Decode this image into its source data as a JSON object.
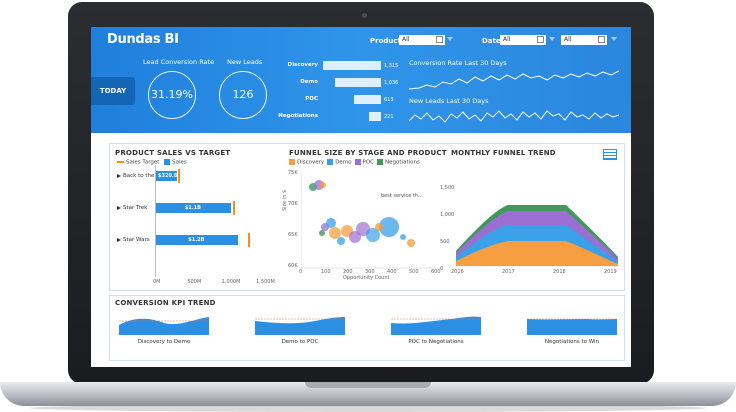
{
  "header": {
    "logo": "Dundas BI",
    "filters": {
      "product_label": "Product:",
      "product_value": "All",
      "date_label": "Date:",
      "date_from": "All",
      "date_to": "All"
    },
    "today_button": "TODAY",
    "kpis": [
      {
        "title": "Lead Conversion Rate",
        "value": "31.19%"
      },
      {
        "title": "New Leads",
        "value": "126"
      }
    ],
    "funnel": [
      {
        "stage": "Discovery",
        "value": "1,315",
        "fraction": 1.0
      },
      {
        "stage": "Demo",
        "value": "1,036",
        "fraction": 0.79
      },
      {
        "stage": "POC",
        "value": "613",
        "fraction": 0.47
      },
      {
        "stage": "Negotiations",
        "value": "221",
        "fraction": 0.17
      }
    ],
    "trends": [
      {
        "title": "Conversion Rate Last 30 Days"
      },
      {
        "title": "New Leads Last 30 Days"
      }
    ]
  },
  "product_sales": {
    "title": "PRODUCT SALES VS TARGET",
    "legend": {
      "target": "Sales Target",
      "sales": "Sales"
    },
    "rows": [
      {
        "label": "Back to the F...",
        "value_label": "$320.8M",
        "value": 320.8,
        "target": 330
      },
      {
        "label": "Star Trek",
        "value_label": "$1.1B",
        "value": 1100,
        "target": 1130
      },
      {
        "label": "Star Wars",
        "value_label": "$1.2B",
        "value": 1200,
        "target": 1350
      }
    ],
    "x_ticks": [
      "0M",
      "500M",
      "1,000M",
      "1,500M"
    ],
    "x_max": 1600
  },
  "funnel_size": {
    "title": "FUNNEL SIZE BY STAGE AND PRODUCT",
    "legend": [
      {
        "name": "Discovery",
        "color": "#f59e42"
      },
      {
        "name": "Demo",
        "color": "#3aa0e8"
      },
      {
        "name": "POC",
        "color": "#9b6fd1"
      },
      {
        "name": "Negotiations",
        "color": "#3f9a5a"
      }
    ],
    "y_label": "Size in $",
    "x_label": "Opportunity Count",
    "y_ticks": [
      "75K",
      "70K",
      "65K",
      "60K"
    ],
    "x_ticks": [
      "0",
      "100",
      "200",
      "300",
      "400",
      "500",
      "600"
    ],
    "annotation": "best service th..."
  },
  "monthly_funnel": {
    "title": "MONTHLY FUNNEL TREND",
    "y_ticks": [
      "1,500",
      "1,000",
      "500",
      "0"
    ],
    "x_ticks": [
      "2016",
      "2017",
      "2018",
      "2019"
    ]
  },
  "conversion_kpi": {
    "title": "CONVERSION KPI TREND",
    "items": [
      {
        "label": "Discovery to Demo"
      },
      {
        "label": "Demo to POC"
      },
      {
        "label": "POC to Negotiations"
      },
      {
        "label": "Negotiations to Win"
      }
    ]
  },
  "colors": {
    "header_blue": "#2b8ce6",
    "accent_orange": "#ff8c1a",
    "bar_blue": "#2b8fe3"
  }
}
